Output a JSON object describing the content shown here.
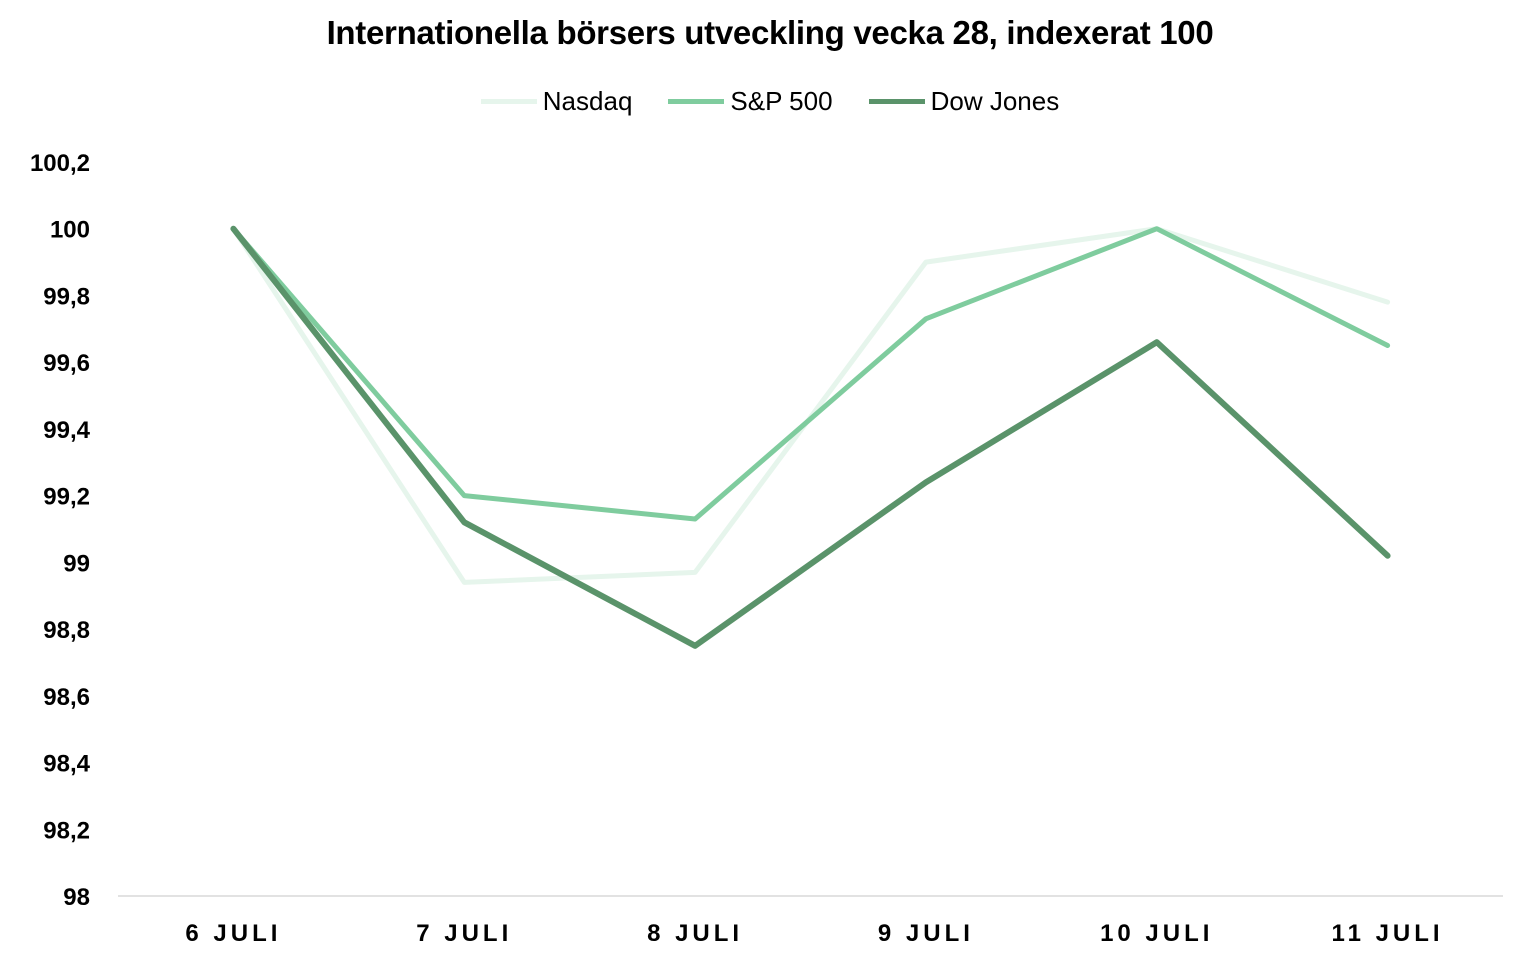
{
  "chart_data": {
    "type": "line",
    "title": "Internationella börsers utveckling vecka 28, indexerat 100",
    "xlabel": "",
    "ylabel": "",
    "categories": [
      "6 JULI",
      "7 JULI",
      "8 JULI",
      "9 JULI",
      "10 JULI",
      "11 JULI"
    ],
    "ylim": [
      98,
      100.2
    ],
    "yticks": [
      98,
      98.2,
      98.4,
      98.6,
      98.8,
      99,
      99.2,
      99.4,
      99.6,
      99.8,
      100,
      100.2
    ],
    "ytick_labels": [
      "98",
      "98,2",
      "98,4",
      "98,6",
      "98,8",
      "99",
      "99,2",
      "99,4",
      "99,6",
      "99,8",
      "100",
      "100,2"
    ],
    "grid": false,
    "legend_position": "top",
    "series": [
      {
        "name": "Nasdaq",
        "color": "#e6f5ec",
        "values": [
          100,
          98.94,
          98.97,
          99.9,
          100,
          99.78
        ]
      },
      {
        "name": "S&P 500",
        "color": "#7fcc9e",
        "values": [
          100,
          99.2,
          99.13,
          99.73,
          100,
          99.65
        ]
      },
      {
        "name": "Dow Jones",
        "color": "#5a936a",
        "values": [
          100,
          99.12,
          98.75,
          99.24,
          99.66,
          99.02
        ]
      }
    ]
  }
}
